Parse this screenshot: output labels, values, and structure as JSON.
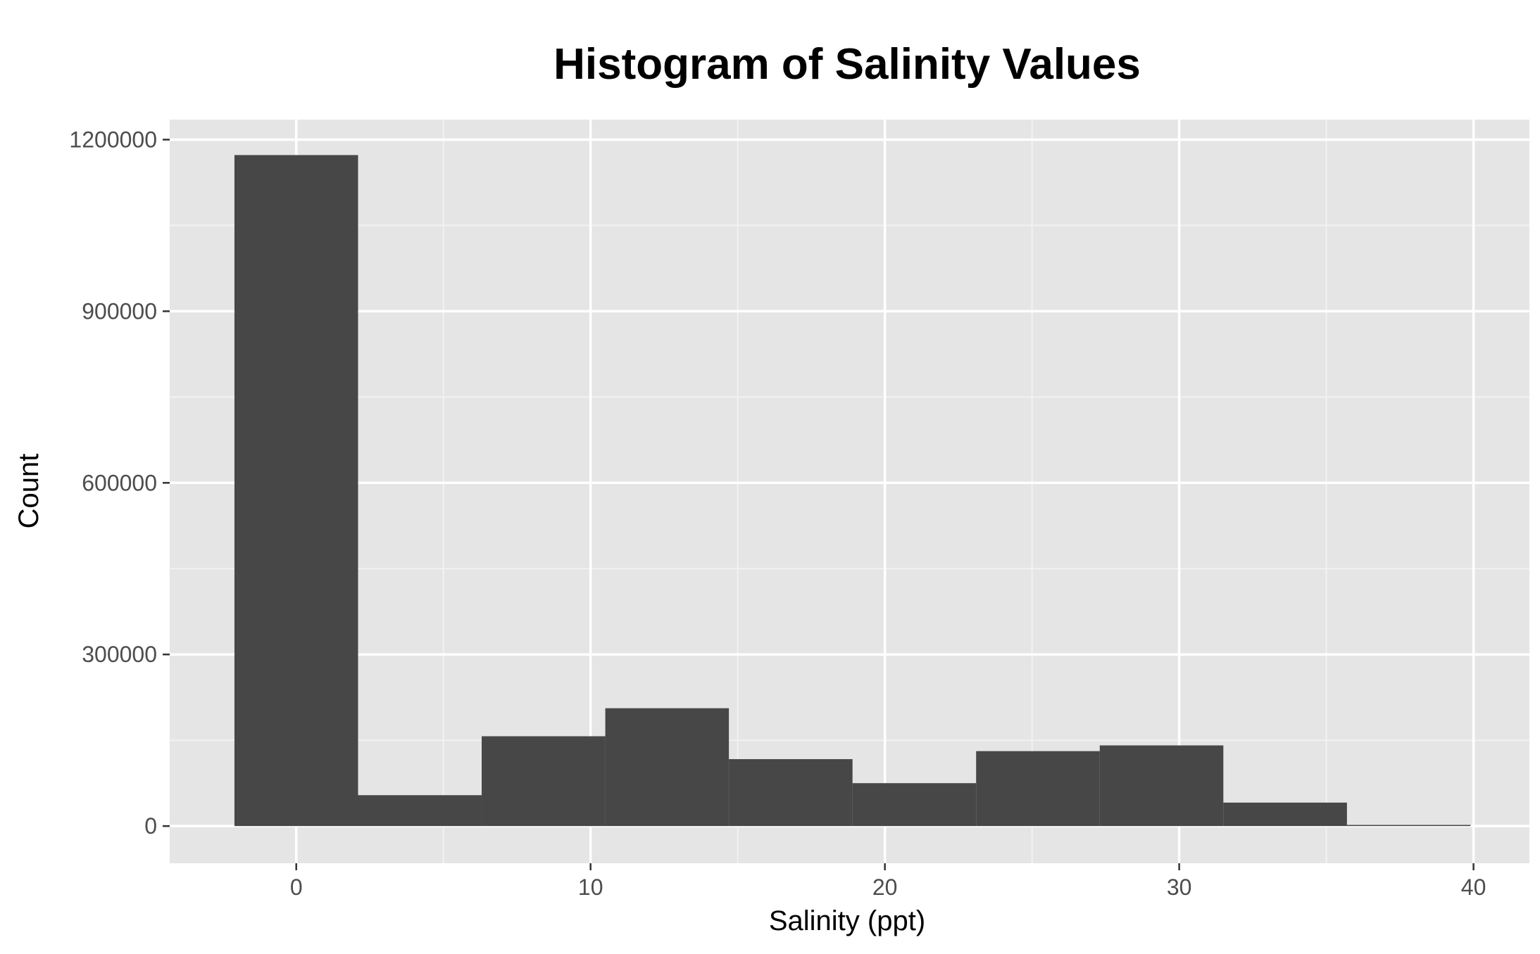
{
  "chart_data": {
    "type": "bar",
    "subtype": "histogram",
    "title": "Histogram of Salinity Values",
    "xlabel": "Salinity (ppt)",
    "ylabel": "Count",
    "xlim": [
      -4.3,
      41.9
    ],
    "ylim": [
      -65000,
      1235000
    ],
    "x_ticks": [
      0,
      10,
      20,
      30,
      40
    ],
    "x_minor_ticks": [
      5,
      15,
      25,
      35
    ],
    "y_ticks": [
      0,
      300000,
      600000,
      900000,
      1200000
    ],
    "y_minor_ticks": [
      150000,
      450000,
      750000,
      1050000
    ],
    "bins": [
      {
        "x_start": -2.1,
        "x_end": 2.1,
        "count": 1173000
      },
      {
        "x_start": 2.1,
        "x_end": 6.3,
        "count": 54000
      },
      {
        "x_start": 6.3,
        "x_end": 10.5,
        "count": 157000
      },
      {
        "x_start": 10.5,
        "x_end": 14.7,
        "count": 206000
      },
      {
        "x_start": 14.7,
        "x_end": 18.9,
        "count": 117000
      },
      {
        "x_start": 18.9,
        "x_end": 23.1,
        "count": 75000
      },
      {
        "x_start": 23.1,
        "x_end": 27.3,
        "count": 131000
      },
      {
        "x_start": 27.3,
        "x_end": 31.5,
        "count": 141000
      },
      {
        "x_start": 31.5,
        "x_end": 35.7,
        "count": 41000
      },
      {
        "x_start": 35.7,
        "x_end": 39.9,
        "count": 2000
      }
    ],
    "grid": true,
    "colors": {
      "panel_background": "#e5e5e5",
      "grid_major": "#ffffff",
      "grid_minor": "#f2f2f2",
      "bar_fill": "#474747",
      "tick_mark": "#333333",
      "tick_label": "#4d4d4d",
      "text": "#000000"
    }
  }
}
